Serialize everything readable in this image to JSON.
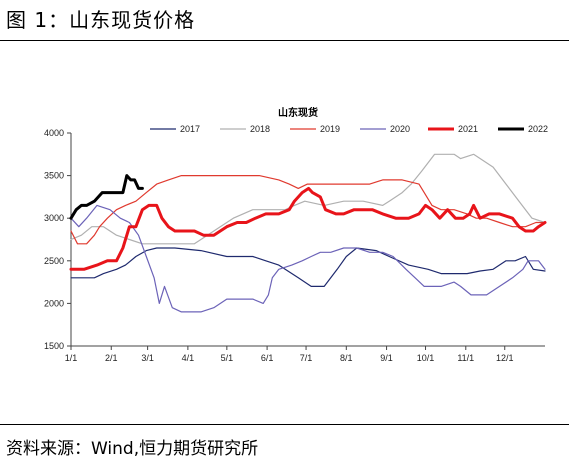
{
  "figure": {
    "label": "图 1：山东现货价格",
    "source": "资料来源：Wind,恒力期货研究所"
  },
  "chart_data": {
    "type": "line",
    "title": "山东现货",
    "xlabel": "",
    "ylabel": "",
    "ylim": [
      1500,
      4000
    ],
    "yticks": [
      1500,
      2000,
      2500,
      3000,
      3500,
      4000
    ],
    "xticks": [
      "1/1",
      "2/1",
      "3/1",
      "4/1",
      "5/1",
      "6/1",
      "7/1",
      "8/1",
      "9/1",
      "10/1",
      "11/1",
      "12/1"
    ],
    "xtick_days": [
      0,
      31,
      59,
      90,
      120,
      151,
      181,
      212,
      243,
      273,
      304,
      334
    ],
    "xrange_days": [
      0,
      365
    ],
    "grid": false,
    "legend_position": "top",
    "series": [
      {
        "name": "2017",
        "color": "#1f2a6e",
        "width": 1.2,
        "points": [
          [
            0,
            2300
          ],
          [
            18,
            2300
          ],
          [
            25,
            2350
          ],
          [
            35,
            2400
          ],
          [
            42,
            2450
          ],
          [
            50,
            2550
          ],
          [
            58,
            2620
          ],
          [
            66,
            2650
          ],
          [
            80,
            2650
          ],
          [
            100,
            2620
          ],
          [
            120,
            2550
          ],
          [
            140,
            2550
          ],
          [
            150,
            2500
          ],
          [
            160,
            2450
          ],
          [
            175,
            2300
          ],
          [
            185,
            2200
          ],
          [
            195,
            2200
          ],
          [
            205,
            2400
          ],
          [
            212,
            2550
          ],
          [
            220,
            2650
          ],
          [
            235,
            2620
          ],
          [
            245,
            2550
          ],
          [
            260,
            2450
          ],
          [
            275,
            2400
          ],
          [
            285,
            2350
          ],
          [
            295,
            2350
          ],
          [
            305,
            2350
          ],
          [
            315,
            2380
          ],
          [
            325,
            2400
          ],
          [
            335,
            2500
          ],
          [
            342,
            2500
          ],
          [
            350,
            2550
          ],
          [
            356,
            2400
          ],
          [
            365,
            2380
          ]
        ]
      },
      {
        "name": "2018",
        "color": "#b0b0b0",
        "width": 1.2,
        "points": [
          [
            0,
            2750
          ],
          [
            8,
            2800
          ],
          [
            16,
            2900
          ],
          [
            25,
            2900
          ],
          [
            35,
            2800
          ],
          [
            45,
            2750
          ],
          [
            55,
            2700
          ],
          [
            70,
            2700
          ],
          [
            85,
            2700
          ],
          [
            95,
            2700
          ],
          [
            105,
            2800
          ],
          [
            115,
            2900
          ],
          [
            125,
            3000
          ],
          [
            140,
            3100
          ],
          [
            155,
            3100
          ],
          [
            165,
            3100
          ],
          [
            172,
            3150
          ],
          [
            180,
            3200
          ],
          [
            195,
            3150
          ],
          [
            210,
            3200
          ],
          [
            225,
            3200
          ],
          [
            240,
            3150
          ],
          [
            245,
            3200
          ],
          [
            255,
            3300
          ],
          [
            262,
            3400
          ],
          [
            270,
            3550
          ],
          [
            280,
            3750
          ],
          [
            295,
            3750
          ],
          [
            300,
            3700
          ],
          [
            310,
            3750
          ],
          [
            325,
            3600
          ],
          [
            335,
            3400
          ],
          [
            345,
            3200
          ],
          [
            355,
            3000
          ],
          [
            365,
            2950
          ]
        ]
      },
      {
        "name": "2019",
        "color": "#e03a2f",
        "width": 1.2,
        "points": [
          [
            0,
            2850
          ],
          [
            5,
            2700
          ],
          [
            12,
            2700
          ],
          [
            18,
            2800
          ],
          [
            22,
            2900
          ],
          [
            28,
            3000
          ],
          [
            35,
            3100
          ],
          [
            42,
            3150
          ],
          [
            50,
            3200
          ],
          [
            58,
            3300
          ],
          [
            66,
            3400
          ],
          [
            75,
            3450
          ],
          [
            85,
            3500
          ],
          [
            100,
            3500
          ],
          [
            115,
            3500
          ],
          [
            130,
            3500
          ],
          [
            145,
            3500
          ],
          [
            160,
            3450
          ],
          [
            168,
            3400
          ],
          [
            175,
            3350
          ],
          [
            182,
            3400
          ],
          [
            188,
            3400
          ],
          [
            200,
            3400
          ],
          [
            210,
            3400
          ],
          [
            220,
            3400
          ],
          [
            230,
            3400
          ],
          [
            240,
            3450
          ],
          [
            255,
            3450
          ],
          [
            268,
            3400
          ],
          [
            272,
            3300
          ],
          [
            278,
            3150
          ],
          [
            285,
            3100
          ],
          [
            295,
            3100
          ],
          [
            305,
            3050
          ],
          [
            312,
            3000
          ],
          [
            320,
            3000
          ],
          [
            330,
            2950
          ],
          [
            340,
            2900
          ],
          [
            350,
            2900
          ],
          [
            358,
            2950
          ],
          [
            365,
            2950
          ]
        ]
      },
      {
        "name": "2020",
        "color": "#6c63b8",
        "width": 1.2,
        "points": [
          [
            0,
            3000
          ],
          [
            6,
            2900
          ],
          [
            12,
            3000
          ],
          [
            20,
            3150
          ],
          [
            30,
            3100
          ],
          [
            38,
            3000
          ],
          [
            45,
            2950
          ],
          [
            52,
            2800
          ],
          [
            58,
            2550
          ],
          [
            64,
            2300
          ],
          [
            68,
            2000
          ],
          [
            72,
            2200
          ],
          [
            78,
            1950
          ],
          [
            85,
            1900
          ],
          [
            100,
            1900
          ],
          [
            110,
            1950
          ],
          [
            120,
            2050
          ],
          [
            130,
            2050
          ],
          [
            140,
            2050
          ],
          [
            148,
            2000
          ],
          [
            152,
            2100
          ],
          [
            155,
            2300
          ],
          [
            160,
            2400
          ],
          [
            170,
            2450
          ],
          [
            178,
            2500
          ],
          [
            185,
            2550
          ],
          [
            192,
            2600
          ],
          [
            200,
            2600
          ],
          [
            210,
            2650
          ],
          [
            220,
            2650
          ],
          [
            230,
            2600
          ],
          [
            240,
            2600
          ],
          [
            248,
            2550
          ],
          [
            258,
            2400
          ],
          [
            265,
            2300
          ],
          [
            272,
            2200
          ],
          [
            285,
            2200
          ],
          [
            295,
            2250
          ],
          [
            300,
            2200
          ],
          [
            308,
            2100
          ],
          [
            320,
            2100
          ],
          [
            330,
            2200
          ],
          [
            340,
            2300
          ],
          [
            348,
            2400
          ],
          [
            352,
            2500
          ],
          [
            360,
            2500
          ],
          [
            365,
            2400
          ]
        ]
      },
      {
        "name": "2021",
        "color": "#e8141a",
        "width": 3,
        "points": [
          [
            0,
            2400
          ],
          [
            10,
            2400
          ],
          [
            20,
            2450
          ],
          [
            28,
            2500
          ],
          [
            35,
            2500
          ],
          [
            40,
            2650
          ],
          [
            45,
            2900
          ],
          [
            50,
            2900
          ],
          [
            55,
            3100
          ],
          [
            60,
            3150
          ],
          [
            66,
            3150
          ],
          [
            70,
            3000
          ],
          [
            75,
            2900
          ],
          [
            80,
            2850
          ],
          [
            88,
            2850
          ],
          [
            95,
            2850
          ],
          [
            102,
            2800
          ],
          [
            110,
            2800
          ],
          [
            115,
            2850
          ],
          [
            120,
            2900
          ],
          [
            128,
            2950
          ],
          [
            135,
            2950
          ],
          [
            142,
            3000
          ],
          [
            150,
            3050
          ],
          [
            160,
            3050
          ],
          [
            168,
            3100
          ],
          [
            172,
            3200
          ],
          [
            178,
            3300
          ],
          [
            183,
            3350
          ],
          [
            186,
            3300
          ],
          [
            192,
            3250
          ],
          [
            196,
            3100
          ],
          [
            204,
            3050
          ],
          [
            210,
            3050
          ],
          [
            218,
            3100
          ],
          [
            225,
            3100
          ],
          [
            232,
            3100
          ],
          [
            240,
            3050
          ],
          [
            250,
            3000
          ],
          [
            260,
            3000
          ],
          [
            268,
            3050
          ],
          [
            273,
            3150
          ],
          [
            278,
            3100
          ],
          [
            284,
            3000
          ],
          [
            290,
            3100
          ],
          [
            296,
            3000
          ],
          [
            302,
            3000
          ],
          [
            307,
            3050
          ],
          [
            310,
            3150
          ],
          [
            315,
            3000
          ],
          [
            322,
            3050
          ],
          [
            330,
            3050
          ],
          [
            340,
            3000
          ],
          [
            345,
            2900
          ],
          [
            350,
            2850
          ],
          [
            356,
            2850
          ],
          [
            360,
            2900
          ],
          [
            365,
            2950
          ]
        ]
      },
      {
        "name": "2022",
        "color": "#000000",
        "width": 3,
        "points": [
          [
            0,
            3000
          ],
          [
            4,
            3100
          ],
          [
            8,
            3150
          ],
          [
            12,
            3150
          ],
          [
            18,
            3200
          ],
          [
            24,
            3300
          ],
          [
            30,
            3300
          ],
          [
            36,
            3300
          ],
          [
            40,
            3300
          ],
          [
            43,
            3500
          ],
          [
            46,
            3450
          ],
          [
            49,
            3450
          ],
          [
            52,
            3350
          ],
          [
            55,
            3350
          ]
        ]
      }
    ]
  }
}
